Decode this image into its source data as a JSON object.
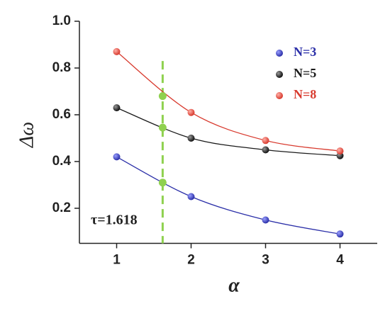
{
  "chart_data": {
    "type": "line",
    "x": [
      1,
      2,
      3,
      4
    ],
    "series": [
      {
        "name": "N=3",
        "color": "#2b2fa8",
        "values": [
          0.42,
          0.25,
          0.15,
          0.09
        ]
      },
      {
        "name": "N=5",
        "color": "#1a1a1a",
        "values": [
          0.63,
          0.5,
          0.45,
          0.425
        ]
      },
      {
        "name": "N=8",
        "color": "#d83a2e",
        "values": [
          0.87,
          0.61,
          0.49,
          0.445
        ]
      }
    ],
    "highlight": {
      "x": 1.618,
      "values": [
        0.68,
        0.545,
        0.31
      ],
      "color": "#8fd14f"
    },
    "annotation": "τ=1.618",
    "xlabel": "α",
    "ylabel": "Δω",
    "xlim": [
      0.5,
      4.5
    ],
    "ylim": [
      0.05,
      1.0
    ],
    "xticks": [
      1,
      2,
      3,
      4
    ],
    "yticks": [
      0.2,
      0.4,
      0.6,
      0.8,
      {
        "value": 1,
        "label": "1.0"
      }
    ],
    "legend": "upper right"
  }
}
